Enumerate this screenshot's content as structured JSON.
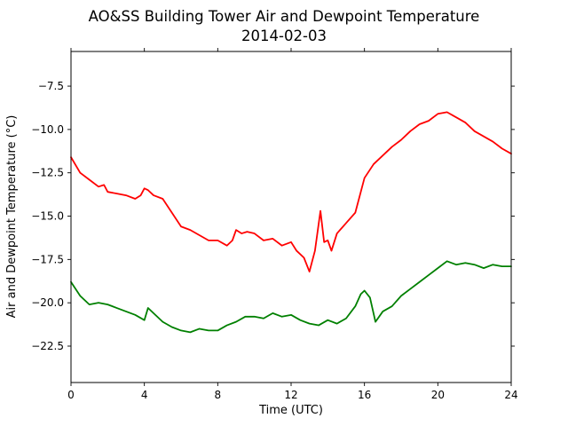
{
  "chart_data": {
    "type": "line",
    "title": "AO&SS Building Tower Air and Dewpoint Temperature",
    "subtitle": "2014-02-03",
    "xlabel": "Time (UTC)",
    "ylabel": "Air and Dewpoint Temperature (°C)",
    "xlim": [
      0,
      24
    ],
    "ylim": [
      -24.6,
      -5.5
    ],
    "xticks": [
      0,
      4,
      8,
      12,
      16,
      20,
      24
    ],
    "yticks": [
      -22.5,
      -20.0,
      -17.5,
      -15.0,
      -12.5,
      -10.0,
      -7.5
    ],
    "ytick_labels": [
      "−22.5",
      "−20.0",
      "−17.5",
      "−15.0",
      "−12.5",
      "−10.0",
      "−7.5"
    ],
    "grid": false,
    "series": [
      {
        "color": "#ff0000",
        "x": [
          0,
          0.5,
          1.0,
          1.5,
          1.8,
          2.0,
          2.5,
          3.0,
          3.5,
          3.8,
          4.0,
          4.2,
          4.5,
          5.0,
          5.5,
          6.0,
          6.5,
          7.0,
          7.5,
          8.0,
          8.5,
          8.8,
          9.0,
          9.3,
          9.6,
          10.0,
          10.5,
          11.0,
          11.5,
          12.0,
          12.3,
          12.7,
          13.0,
          13.3,
          13.6,
          13.8,
          14.0,
          14.2,
          14.5,
          15.0,
          15.5,
          16.0,
          16.5,
          17.0,
          17.5,
          18.0,
          18.5,
          19.0,
          19.5,
          20.0,
          20.5,
          21.0,
          21.5,
          22.0,
          22.5,
          23.0,
          23.5,
          24.0
        ],
        "y": [
          -11.6,
          -12.5,
          -12.9,
          -13.3,
          -13.2,
          -13.6,
          -13.7,
          -13.8,
          -14.0,
          -13.8,
          -13.4,
          -13.5,
          -13.8,
          -14.0,
          -14.8,
          -15.6,
          -15.8,
          -16.1,
          -16.4,
          -16.4,
          -16.7,
          -16.4,
          -15.8,
          -16.0,
          -15.9,
          -16.0,
          -16.4,
          -16.3,
          -16.7,
          -16.5,
          -17.0,
          -17.4,
          -18.2,
          -17.0,
          -14.7,
          -16.5,
          -16.4,
          -17.0,
          -16.0,
          -15.4,
          -14.8,
          -12.8,
          -12.0,
          -11.5,
          -11.0,
          -10.6,
          -10.1,
          -9.7,
          -9.5,
          -9.1,
          -9.0,
          -9.3,
          -9.6,
          -10.1,
          -10.4,
          -10.7,
          -11.1,
          -11.4
        ]
      },
      {
        "color": "#008000",
        "x": [
          0,
          0.5,
          1.0,
          1.5,
          2.0,
          2.5,
          3.0,
          3.5,
          4.0,
          4.2,
          4.5,
          5.0,
          5.5,
          6.0,
          6.5,
          7.0,
          7.5,
          8.0,
          8.5,
          9.0,
          9.5,
          10.0,
          10.5,
          11.0,
          11.5,
          12.0,
          12.5,
          13.0,
          13.5,
          14.0,
          14.5,
          15.0,
          15.5,
          15.8,
          16.0,
          16.3,
          16.6,
          17.0,
          17.5,
          18.0,
          18.5,
          19.0,
          19.5,
          20.0,
          20.5,
          21.0,
          21.5,
          22.0,
          22.5,
          23.0,
          23.5,
          24.0
        ],
        "y": [
          -18.8,
          -19.6,
          -20.1,
          -20.0,
          -20.1,
          -20.3,
          -20.5,
          -20.7,
          -21.0,
          -20.3,
          -20.6,
          -21.1,
          -21.4,
          -21.6,
          -21.7,
          -21.5,
          -21.6,
          -21.6,
          -21.3,
          -21.1,
          -20.8,
          -20.8,
          -20.9,
          -20.6,
          -20.8,
          -20.7,
          -21.0,
          -21.2,
          -21.3,
          -21.0,
          -21.2,
          -20.9,
          -20.2,
          -19.5,
          -19.3,
          -19.7,
          -21.1,
          -20.5,
          -20.2,
          -19.6,
          -19.2,
          -18.8,
          -18.4,
          -18.0,
          -17.6,
          -17.8,
          -17.7,
          -17.8,
          -18.0,
          -17.8,
          -17.9,
          -17.9
        ]
      }
    ]
  }
}
